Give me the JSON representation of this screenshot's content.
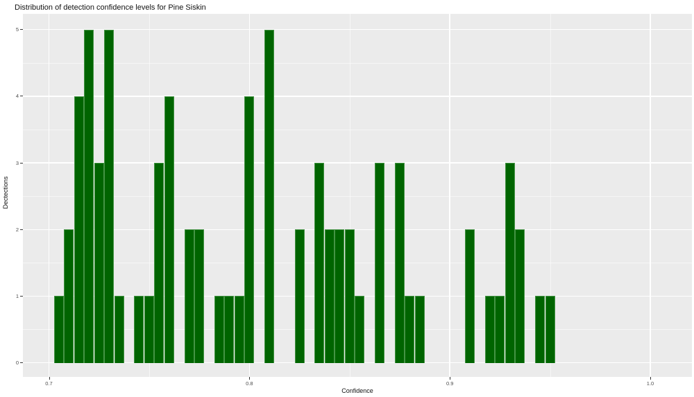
{
  "chart_data": {
    "type": "bar",
    "subtype": "histogram",
    "title": "Distribution of detection confidence levels for Pine Siskin",
    "xlabel": "Confidence",
    "ylabel": "Dectections",
    "x_ticks": [
      0.7,
      0.8,
      0.9,
      1.0
    ],
    "x_minor_ticks": [
      0.75,
      0.85,
      0.95
    ],
    "y_ticks": [
      0,
      1,
      2,
      3,
      4,
      5
    ],
    "y_minor_ticks": [
      0.5,
      1.5,
      2.5,
      3.5,
      4.5
    ],
    "xlim": [
      0.687,
      1.021
    ],
    "ylim": [
      0,
      5
    ],
    "binwidth": 0.005,
    "grid": "major+minor",
    "legend_position": "none",
    "total_detections": 77,
    "bins": [
      {
        "x": 0.705,
        "count": 1
      },
      {
        "x": 0.71,
        "count": 2
      },
      {
        "x": 0.715,
        "count": 4
      },
      {
        "x": 0.72,
        "count": 5
      },
      {
        "x": 0.725,
        "count": 3
      },
      {
        "x": 0.73,
        "count": 5
      },
      {
        "x": 0.735,
        "count": 1
      },
      {
        "x": 0.745,
        "count": 1
      },
      {
        "x": 0.75,
        "count": 1
      },
      {
        "x": 0.755,
        "count": 3
      },
      {
        "x": 0.76,
        "count": 4
      },
      {
        "x": 0.77,
        "count": 2
      },
      {
        "x": 0.775,
        "count": 2
      },
      {
        "x": 0.785,
        "count": 1
      },
      {
        "x": 0.79,
        "count": 1
      },
      {
        "x": 0.795,
        "count": 1
      },
      {
        "x": 0.8,
        "count": 4
      },
      {
        "x": 0.81,
        "count": 5
      },
      {
        "x": 0.825,
        "count": 2
      },
      {
        "x": 0.835,
        "count": 3
      },
      {
        "x": 0.84,
        "count": 2
      },
      {
        "x": 0.845,
        "count": 2
      },
      {
        "x": 0.85,
        "count": 2
      },
      {
        "x": 0.855,
        "count": 1
      },
      {
        "x": 0.865,
        "count": 3
      },
      {
        "x": 0.875,
        "count": 3
      },
      {
        "x": 0.88,
        "count": 1
      },
      {
        "x": 0.885,
        "count": 1
      },
      {
        "x": 0.91,
        "count": 2
      },
      {
        "x": 0.92,
        "count": 1
      },
      {
        "x": 0.925,
        "count": 1
      },
      {
        "x": 0.93,
        "count": 3
      },
      {
        "x": 0.935,
        "count": 2
      },
      {
        "x": 0.945,
        "count": 1
      },
      {
        "x": 0.95,
        "count": 1
      }
    ],
    "colors": {
      "bar_fill": "#006400",
      "bar_border": "#459445",
      "panel_background": "#ebebeb",
      "gridline": "#ffffff",
      "tick_text": "#4d4d4d",
      "text": "#111111",
      "figure_background": "#ffffff"
    }
  }
}
